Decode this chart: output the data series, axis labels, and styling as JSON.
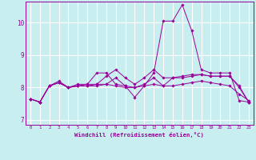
{
  "xlabel": "Windchill (Refroidissement éolien,°C)",
  "background_color": "#c8eef0",
  "grid_color": "#ffffff",
  "line_color": "#990099",
  "xmin": -0.5,
  "xmax": 23.5,
  "ymin": 6.85,
  "ymax": 10.65,
  "yticks": [
    7,
    8,
    9,
    10
  ],
  "xticks": [
    0,
    1,
    2,
    3,
    4,
    5,
    6,
    7,
    8,
    9,
    10,
    11,
    12,
    13,
    14,
    15,
    16,
    17,
    18,
    19,
    20,
    21,
    22,
    23
  ],
  "series": [
    [
      7.65,
      7.55,
      8.05,
      8.15,
      8.0,
      8.05,
      8.05,
      8.05,
      8.1,
      8.05,
      8.0,
      8.0,
      8.05,
      8.1,
      8.05,
      8.05,
      8.1,
      8.15,
      8.2,
      8.15,
      8.1,
      8.05,
      7.8,
      7.6
    ],
    [
      7.65,
      7.55,
      8.05,
      8.2,
      8.0,
      8.05,
      8.1,
      8.45,
      8.45,
      8.1,
      8.05,
      7.7,
      8.05,
      8.45,
      10.05,
      10.05,
      10.55,
      9.75,
      8.55,
      8.45,
      8.45,
      8.45,
      7.6,
      7.55
    ],
    [
      7.65,
      7.55,
      8.05,
      8.15,
      8.0,
      8.1,
      8.1,
      8.1,
      8.35,
      8.55,
      8.3,
      8.1,
      8.3,
      8.55,
      8.3,
      8.3,
      8.3,
      8.35,
      8.4,
      8.35,
      8.35,
      8.35,
      8.05,
      7.55
    ],
    [
      7.65,
      7.55,
      8.05,
      8.15,
      8.0,
      8.05,
      8.05,
      8.1,
      8.1,
      8.3,
      8.05,
      8.0,
      8.1,
      8.3,
      8.05,
      8.3,
      8.35,
      8.4,
      8.4,
      8.35,
      8.35,
      8.35,
      8.0,
      7.55
    ]
  ]
}
